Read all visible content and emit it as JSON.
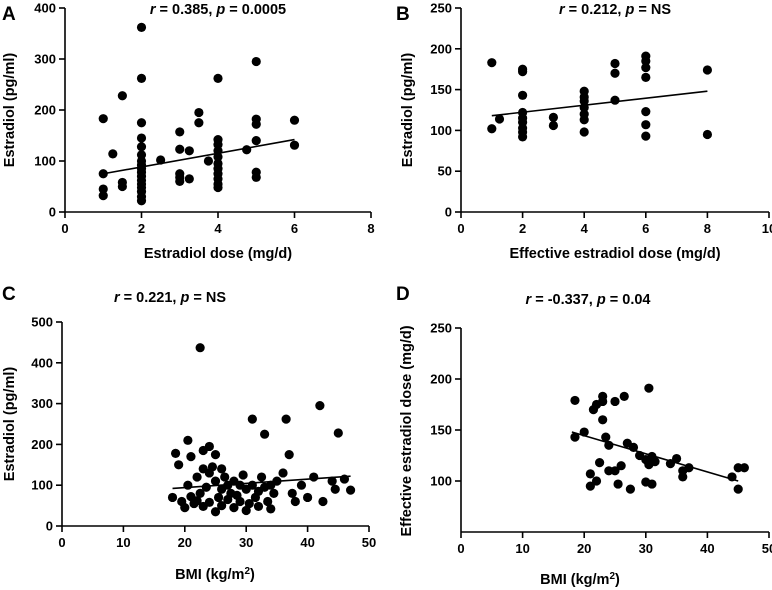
{
  "chart_data": [
    {
      "type": "scatter",
      "panel": "A",
      "annotation": {
        "r_label": "r",
        "r_value": " = 0.385, ",
        "p_label": "p",
        "p_value": " = 0.0005"
      },
      "xlabel": "Estradiol dose (mg/d)",
      "ylabel": "Estradiol (pg/ml)",
      "xlim": [
        0,
        8
      ],
      "ylim": [
        0,
        400
      ],
      "xticks": [
        0,
        2,
        4,
        6,
        8
      ],
      "yticks": [
        0,
        100,
        200,
        300,
        400
      ],
      "trendline": {
        "x": [
          1,
          6
        ],
        "y": [
          75,
          142
        ]
      },
      "points": [
        [
          1,
          183
        ],
        [
          1,
          75
        ],
        [
          1,
          45
        ],
        [
          1,
          32
        ],
        [
          1.25,
          114
        ],
        [
          1.5,
          228
        ],
        [
          1.5,
          58
        ],
        [
          1.5,
          50
        ],
        [
          2,
          362
        ],
        [
          2,
          262
        ],
        [
          2,
          175
        ],
        [
          2,
          145
        ],
        [
          2,
          128
        ],
        [
          2,
          112
        ],
        [
          2,
          100
        ],
        [
          2,
          92
        ],
        [
          2,
          85
        ],
        [
          2,
          78
        ],
        [
          2,
          70
        ],
        [
          2,
          62
        ],
        [
          2,
          55
        ],
        [
          2,
          48
        ],
        [
          2,
          40
        ],
        [
          2,
          30
        ],
        [
          2,
          22
        ],
        [
          2.5,
          102
        ],
        [
          3,
          157
        ],
        [
          3,
          123
        ],
        [
          3,
          75
        ],
        [
          3,
          68
        ],
        [
          3,
          60
        ],
        [
          3.25,
          65
        ],
        [
          3.25,
          120
        ],
        [
          3.5,
          195
        ],
        [
          3.5,
          175
        ],
        [
          3.75,
          100
        ],
        [
          4,
          262
        ],
        [
          4,
          142
        ],
        [
          4,
          132
        ],
        [
          4,
          120
        ],
        [
          4,
          108
        ],
        [
          4,
          95
        ],
        [
          4,
          85
        ],
        [
          4,
          75
        ],
        [
          4,
          65
        ],
        [
          4,
          55
        ],
        [
          4,
          48
        ],
        [
          4.75,
          122
        ],
        [
          5,
          295
        ],
        [
          5,
          182
        ],
        [
          5,
          172
        ],
        [
          5,
          140
        ],
        [
          5,
          78
        ],
        [
          5,
          68
        ],
        [
          6,
          180
        ],
        [
          6,
          131
        ]
      ]
    },
    {
      "type": "scatter",
      "panel": "B",
      "annotation": {
        "r_label": "r",
        "r_value": " = 0.212, ",
        "p_label": "p",
        "p_value": " = NS"
      },
      "xlabel": "Effective estradiol dose (mg/d)",
      "ylabel": "Estradiol (pg/ml)",
      "xlim": [
        0,
        10
      ],
      "ylim": [
        0,
        250
      ],
      "xticks": [
        0,
        2,
        4,
        6,
        8,
        10
      ],
      "yticks": [
        0,
        50,
        100,
        150,
        200,
        250
      ],
      "trendline": {
        "x": [
          1,
          8
        ],
        "y": [
          118,
          148
        ]
      },
      "points": [
        [
          1,
          183
        ],
        [
          1,
          102
        ],
        [
          1.25,
          114
        ],
        [
          2,
          175
        ],
        [
          2,
          172
        ],
        [
          2,
          143
        ],
        [
          2,
          122
        ],
        [
          2,
          115
        ],
        [
          2,
          110
        ],
        [
          2,
          103
        ],
        [
          2,
          98
        ],
        [
          2,
          92
        ],
        [
          3,
          116
        ],
        [
          3,
          106
        ],
        [
          4,
          148
        ],
        [
          4,
          141
        ],
        [
          4,
          136
        ],
        [
          4,
          128
        ],
        [
          4,
          120
        ],
        [
          4,
          113
        ],
        [
          4,
          98
        ],
        [
          5,
          182
        ],
        [
          5,
          170
        ],
        [
          5,
          137
        ],
        [
          6,
          191
        ],
        [
          6,
          185
        ],
        [
          6,
          177
        ],
        [
          6,
          165
        ],
        [
          6,
          123
        ],
        [
          6,
          107
        ],
        [
          6,
          93
        ],
        [
          8,
          174
        ],
        [
          8,
          95
        ]
      ]
    },
    {
      "type": "scatter",
      "panel": "C",
      "annotation": {
        "r_label": "r",
        "r_value": " = 0.221, ",
        "p_label": "p",
        "p_value": " = NS"
      },
      "xlabel": "BMI (kg/m",
      "xlabel_sup": "2",
      "xlabel_tail": ")",
      "ylabel": "Estradiol (pg/ml)",
      "xlim": [
        0,
        50
      ],
      "ylim": [
        0,
        500
      ],
      "xticks": [
        0,
        10,
        20,
        30,
        40,
        50
      ],
      "yticks": [
        0,
        100,
        200,
        300,
        400,
        500
      ],
      "trendline": {
        "x": [
          18,
          47
        ],
        "y": [
          92,
          122
        ]
      },
      "points": [
        [
          18,
          70
        ],
        [
          18.5,
          178
        ],
        [
          19,
          150
        ],
        [
          19.5,
          60
        ],
        [
          20,
          45
        ],
        [
          20.5,
          210
        ],
        [
          20.5,
          100
        ],
        [
          21,
          170
        ],
        [
          21,
          72
        ],
        [
          21.5,
          55
        ],
        [
          22,
          120
        ],
        [
          22,
          62
        ],
        [
          22.5,
          437
        ],
        [
          22.5,
          80
        ],
        [
          23,
          185
        ],
        [
          23,
          140
        ],
        [
          23,
          48
        ],
        [
          23.5,
          95
        ],
        [
          24,
          195
        ],
        [
          24,
          130
        ],
        [
          24,
          58
        ],
        [
          24.5,
          145
        ],
        [
          25,
          175
        ],
        [
          25,
          110
        ],
        [
          25,
          35
        ],
        [
          25.5,
          70
        ],
        [
          26,
          140
        ],
        [
          26,
          90
        ],
        [
          26,
          50
        ],
        [
          26.5,
          120
        ],
        [
          27,
          100
        ],
        [
          27,
          65
        ],
        [
          27.5,
          80
        ],
        [
          28,
          110
        ],
        [
          28,
          45
        ],
        [
          28.5,
          75
        ],
        [
          29,
          100
        ],
        [
          29,
          60
        ],
        [
          29.5,
          125
        ],
        [
          30,
          90
        ],
        [
          30,
          38
        ],
        [
          30.5,
          55
        ],
        [
          31,
          262
        ],
        [
          31,
          100
        ],
        [
          31.5,
          70
        ],
        [
          32,
          85
        ],
        [
          32,
          48
        ],
        [
          32.5,
          120
        ],
        [
          33,
          225
        ],
        [
          33,
          95
        ],
        [
          33.5,
          60
        ],
        [
          34,
          100
        ],
        [
          34,
          42
        ],
        [
          34.5,
          80
        ],
        [
          35,
          110
        ],
        [
          36,
          130
        ],
        [
          36.5,
          262
        ],
        [
          37,
          175
        ],
        [
          37.5,
          80
        ],
        [
          38,
          60
        ],
        [
          39,
          100
        ],
        [
          40,
          70
        ],
        [
          41,
          120
        ],
        [
          42,
          295
        ],
        [
          42.5,
          60
        ],
        [
          44,
          110
        ],
        [
          44.5,
          90
        ],
        [
          45,
          228
        ],
        [
          46,
          115
        ],
        [
          47,
          88
        ]
      ]
    },
    {
      "type": "scatter",
      "panel": "D",
      "annotation": {
        "r_label": "r",
        "r_value": " = -0.337, ",
        "p_label": "p",
        "p_value": " = 0.04"
      },
      "xlabel": "BMI (kg/m",
      "xlabel_sup": "2",
      "xlabel_tail": ")",
      "ylabel": "Effective estradiol dose (mg/d)",
      "xlim": [
        0,
        50
      ],
      "ylim": [
        50,
        250
      ],
      "xticks": [
        0,
        10,
        20,
        30,
        40,
        50
      ],
      "yticks": [
        100,
        150,
        200,
        250
      ],
      "trendline": {
        "x": [
          18,
          45
        ],
        "y": [
          148,
          100
        ]
      },
      "points": [
        [
          18.5,
          179
        ],
        [
          18.5,
          143
        ],
        [
          20,
          148
        ],
        [
          21,
          107
        ],
        [
          21,
          95
        ],
        [
          21.5,
          170
        ],
        [
          22,
          175
        ],
        [
          22,
          100
        ],
        [
          22.5,
          118
        ],
        [
          23,
          183
        ],
        [
          23,
          178
        ],
        [
          23,
          160
        ],
        [
          23.5,
          143
        ],
        [
          24,
          110
        ],
        [
          24,
          135
        ],
        [
          25,
          110
        ],
        [
          25,
          178
        ],
        [
          25.5,
          97
        ],
        [
          26,
          115
        ],
        [
          26.5,
          183
        ],
        [
          27,
          137
        ],
        [
          27.5,
          92
        ],
        [
          28,
          133
        ],
        [
          29,
          125
        ],
        [
          30,
          121
        ],
        [
          30,
          99
        ],
        [
          30.5,
          191
        ],
        [
          30.5,
          116
        ],
        [
          31,
          97
        ],
        [
          31,
          124
        ],
        [
          31.5,
          119
        ],
        [
          35,
          122
        ],
        [
          36,
          110
        ],
        [
          36,
          104
        ],
        [
          37,
          113
        ],
        [
          44,
          104
        ],
        [
          45,
          113
        ],
        [
          45,
          92
        ],
        [
          46,
          113
        ],
        [
          34,
          117
        ]
      ]
    }
  ]
}
